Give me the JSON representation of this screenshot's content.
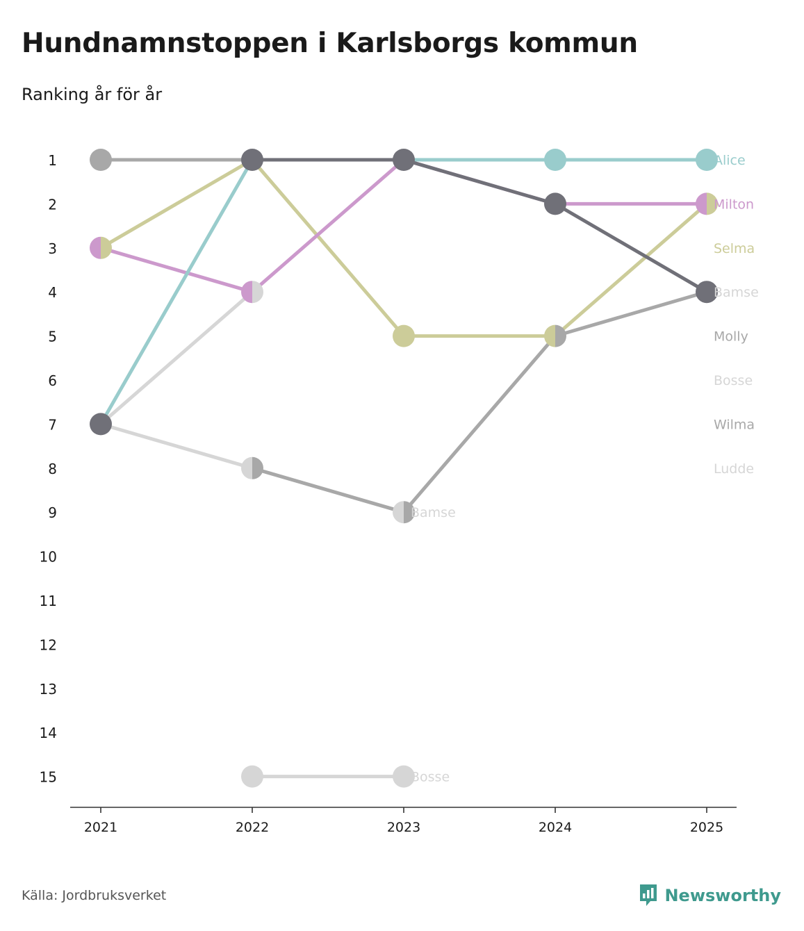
{
  "title": "Hundnamnstoppen i Karlsborgs kommun",
  "subtitle": "Ranking år för år",
  "source": "Källa: Jordbruksverket",
  "brand": "Newsworthy",
  "colors": {
    "axis": "#333333",
    "brand": "#3f9a8e"
  },
  "chart_data": {
    "type": "line",
    "title": "Hundnamnstoppen i Karlsborgs kommun",
    "subtitle": "Ranking år för år",
    "xlabel": "",
    "ylabel": "",
    "categories": [
      "2021",
      "2022",
      "2023",
      "2024",
      "2025"
    ],
    "y_ticks": [
      "1",
      "2",
      "3",
      "4",
      "5",
      "6",
      "7",
      "8",
      "9",
      "10",
      "11",
      "12",
      "13",
      "14",
      "15"
    ],
    "ylim": [
      1,
      15
    ],
    "y_inverted": true,
    "series": [
      {
        "name": "Bosse",
        "color": "#d6d6d6",
        "values": [
          null,
          15,
          15,
          null,
          null
        ]
      },
      {
        "name": "Ludde",
        "color": "#d6d6d6",
        "values": [
          7,
          4,
          null,
          null,
          null
        ]
      },
      {
        "name": "Bamse",
        "color": "#d6d6d6",
        "values": [
          7,
          8,
          9,
          null,
          null
        ]
      },
      {
        "name": "Wilma",
        "color": "#a8a8a8",
        "values": [
          1,
          1,
          null,
          null,
          null
        ]
      },
      {
        "name": "Molly",
        "color": "#a8a8a8",
        "values": [
          null,
          8,
          9,
          5,
          4
        ]
      },
      {
        "name": "Selma",
        "color": "#cccc99",
        "values": [
          3,
          1,
          5,
          5,
          2
        ]
      },
      {
        "name": "Milton",
        "color": "#cc99cc",
        "values": [
          3,
          4,
          1,
          2,
          2
        ]
      },
      {
        "name": "Alice",
        "color": "#99cccc",
        "values": [
          7,
          1,
          1,
          1,
          1
        ]
      },
      {
        "name": "Bamse",
        "color": "#707078",
        "values": [
          null,
          1,
          1,
          2,
          4
        ]
      }
    ],
    "series_colors": {
      "Bamse": "#707078",
      "Ludde": "#d6d6d6"
    },
    "dots": [
      {
        "x": "2021",
        "y": 1,
        "left": "#a8a8a8",
        "right": "#a8a8a8"
      },
      {
        "x": "2021",
        "y": 3,
        "left": "#cc99cc",
        "right": "#cccc99"
      },
      {
        "x": "2021",
        "y": 7,
        "left": "#707078",
        "right": "#707078"
      },
      {
        "x": "2022",
        "y": 1,
        "left": "#707078",
        "right": "#707078"
      },
      {
        "x": "2022",
        "y": 4,
        "left": "#cc99cc",
        "right": "#d6d6d6"
      },
      {
        "x": "2022",
        "y": 8,
        "left": "#d6d6d6",
        "right": "#a8a8a8"
      },
      {
        "x": "2022",
        "y": 15,
        "left": "#d6d6d6",
        "right": "#d6d6d6"
      },
      {
        "x": "2023",
        "y": 1,
        "left": "#707078",
        "right": "#707078"
      },
      {
        "x": "2023",
        "y": 5,
        "left": "#cccc99",
        "right": "#cccc99"
      },
      {
        "x": "2023",
        "y": 9,
        "left": "#d6d6d6",
        "right": "#a8a8a8"
      },
      {
        "x": "2023",
        "y": 15,
        "left": "#d6d6d6",
        "right": "#d6d6d6"
      },
      {
        "x": "2024",
        "y": 1,
        "left": "#99cccc",
        "right": "#99cccc"
      },
      {
        "x": "2024",
        "y": 2,
        "left": "#707078",
        "right": "#707078"
      },
      {
        "x": "2024",
        "y": 5,
        "left": "#cccc99",
        "right": "#a8a8a8"
      },
      {
        "x": "2025",
        "y": 1,
        "left": "#99cccc",
        "right": "#99cccc"
      },
      {
        "x": "2025",
        "y": 2,
        "left": "#cc99cc",
        "right": "#cccc99"
      },
      {
        "x": "2025",
        "y": 4,
        "left": "#707078",
        "right": "#707078"
      }
    ],
    "end_labels": [
      {
        "text": "Alice",
        "rank": 1,
        "color": "#99cccc"
      },
      {
        "text": "Milton",
        "rank": 2,
        "color": "#cc99cc"
      },
      {
        "text": "Selma",
        "rank": 3,
        "color": "#cccc99"
      },
      {
        "text": "Bamse",
        "rank": 4,
        "color": "#d6d6d6"
      },
      {
        "text": "Molly",
        "rank": 5,
        "color": "#a8a8a8"
      },
      {
        "text": "Bosse",
        "rank": 6,
        "color": "#d6d6d6"
      },
      {
        "text": "Wilma",
        "rank": 7,
        "color": "#a8a8a8"
      },
      {
        "text": "Ludde",
        "rank": 8,
        "color": "#d6d6d6"
      }
    ],
    "inline_labels": [
      {
        "text": "Bamse",
        "x": "2023",
        "rank": 9,
        "color": "#d6d6d6"
      },
      {
        "text": "Bosse",
        "x": "2023",
        "rank": 15,
        "color": "#d6d6d6"
      }
    ]
  }
}
